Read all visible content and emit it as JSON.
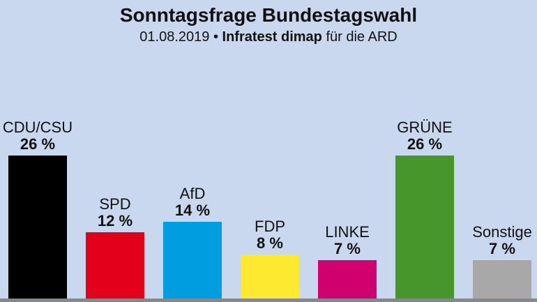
{
  "page": {
    "background": "#c9d8ef",
    "text_color": "#111111",
    "baseline_color": "#83898d"
  },
  "header": {
    "title": "Sonntagsfrage Bundestagswahl",
    "subtitle_date": "01.08.2019 •",
    "subtitle_source": "Infratest dimap",
    "subtitle_suffix": "für die ARD"
  },
  "chart_data": {
    "type": "bar",
    "title": "Sonntagsfrage Bundestagswahl",
    "subtitle": "01.08.2019 • Infratest dimap für die ARD",
    "unit": "percent",
    "ylim": [
      0,
      27
    ],
    "grid": false,
    "legend": false,
    "orientation": "vertical",
    "categories": [
      "CDU/CSU",
      "SPD",
      "AfD",
      "FDP",
      "LINKE",
      "GRÜNE",
      "Sonstige"
    ],
    "values": [
      26,
      12,
      14,
      8,
      7,
      26,
      7
    ],
    "value_labels": [
      "26 %",
      "12 %",
      "14 %",
      "8 %",
      "7 %",
      "26 %",
      "7 %"
    ],
    "bar_colors": [
      "#000000",
      "#e2001a",
      "#009ee0",
      "#fdea30",
      "#d0006f",
      "#46962b",
      "#a8a8a8"
    ]
  }
}
